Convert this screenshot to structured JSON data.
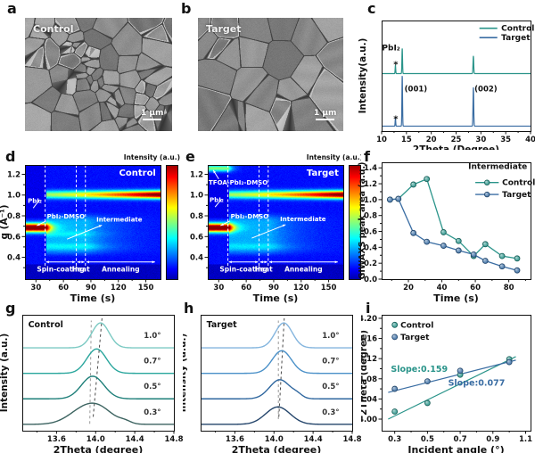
{
  "colors": {
    "control": "#2a948a",
    "target": "#3a6da3",
    "axis": "#111111"
  },
  "panels": {
    "a": {
      "letter": "a",
      "label": "Control",
      "scalebar": "1 μm"
    },
    "b": {
      "letter": "b",
      "label": "Target",
      "scalebar": "1 μm"
    },
    "c": {
      "letter": "c"
    },
    "d": {
      "letter": "d"
    },
    "e": {
      "letter": "e"
    },
    "f": {
      "letter": "f"
    },
    "g": {
      "letter": "g"
    },
    "h": {
      "letter": "h"
    },
    "i": {
      "letter": "i"
    }
  },
  "chart_data": [
    {
      "id": "c",
      "type": "line",
      "xlabel": "2Theta (Degree)",
      "ylabel": "Intensity(a.u.)",
      "xlim": [
        10,
        40
      ],
      "xticks": [
        10,
        15,
        20,
        25,
        30,
        35,
        40
      ],
      "xminors": [
        12.5,
        17.5,
        22.5,
        27.5,
        32.5,
        37.5
      ],
      "legend": [
        {
          "label": "Control",
          "color": "#2a948a"
        },
        {
          "label": "Target",
          "color": "#3a6da3"
        }
      ],
      "series": [
        {
          "name": "Control",
          "color": "#2a948a",
          "baseline": 0.52,
          "peaks": [
            {
              "c": 12.78,
              "h": 0.075,
              "w": 0.055
            },
            {
              "c": 14.15,
              "h": 0.23,
              "w": 0.06
            },
            {
              "c": 28.48,
              "h": 0.16,
              "w": 0.07
            }
          ]
        },
        {
          "name": "Target",
          "color": "#3a6da3",
          "baseline": 0.045,
          "peaks": [
            {
              "c": 12.78,
              "h": 0.07,
              "w": 0.055
            },
            {
              "c": 14.15,
              "h": 0.46,
              "w": 0.06
            },
            {
              "c": 28.48,
              "h": 0.35,
              "w": 0.07
            }
          ]
        }
      ],
      "annotations": [
        {
          "text": "PbI₂",
          "x": 11.9,
          "y": 0.73,
          "size": 9,
          "bold": true,
          "color": "#111"
        },
        {
          "text": "*",
          "x": 12.85,
          "y": 0.575,
          "size": 10,
          "bold": true,
          "color": "#111"
        },
        {
          "text": "*",
          "x": 12.85,
          "y": 0.085,
          "size": 10,
          "bold": true,
          "color": "#111"
        },
        {
          "text": "(001)",
          "x": 16.9,
          "y": 0.36,
          "size": 8.5,
          "bold": true,
          "color": "#111"
        },
        {
          "text": "(002)",
          "x": 31.0,
          "y": 0.36,
          "size": 8.5,
          "bold": true,
          "color": "#111"
        }
      ],
      "legend_rows": [
        0.93,
        0.845
      ],
      "legend_line": [
        29.7,
        33.3
      ],
      "legend_text_x": 34.1
    },
    {
      "id": "d",
      "type": "heatmap",
      "panel_label": "Control",
      "xlabel": "Time (s)",
      "ylabel": "q (Å⁻¹)",
      "colorbar_label": "Intensity (a.u.)",
      "xlim": [
        18,
        166
      ],
      "xticks": [
        30,
        60,
        90,
        120,
        150
      ],
      "xminor_step": 15,
      "ylim": [
        0.19,
        1.29
      ],
      "yticks": [
        0.4,
        0.6,
        0.8,
        1.0,
        1.2
      ],
      "yminor_step": 0.1,
      "vlines": [
        40,
        74,
        84
      ],
      "stages": [
        {
          "text": "Spin-coating",
          "t0": 41,
          "t1": 73
        },
        {
          "text": "Heat",
          "t0": 75,
          "t1": 83
        },
        {
          "text": "Annealing",
          "t0": 85,
          "t1": 160
        }
      ],
      "bands": [
        {
          "kind": "line",
          "q": 0.685,
          "sigma": 0.03,
          "t0": 18,
          "t1": 40,
          "amp": 0.97,
          "decay": 6
        },
        {
          "kind": "grow",
          "q": 1.005,
          "sigma": 0.027,
          "t0": 41,
          "t1": 166,
          "a0": 0.4,
          "a1": 0.92
        },
        {
          "kind": "cloud",
          "q0": 0.45,
          "q1": 0.79,
          "t0": 41,
          "t1": 86,
          "amp": 0.17,
          "tail": 30
        },
        {
          "kind": "line",
          "q": 0.505,
          "sigma": 0.02,
          "t0": 41,
          "t1": 90,
          "amp": 0.07,
          "decay": 20
        },
        {
          "kind": "line",
          "q": 0.625,
          "sigma": 0.02,
          "t0": 41,
          "t1": 80,
          "amp": 0.06,
          "decay": 20
        }
      ],
      "annotations": [
        {
          "text": "PbI₂",
          "t": 21,
          "q": 0.925,
          "arrow": [
            27,
            0.875,
            34,
            0.955
          ]
        },
        {
          "text": "PbI₂-DMSO",
          "t": 42,
          "q": 0.775,
          "arrow": [
            41,
            0.75,
            31,
            0.705
          ]
        },
        {
          "text": "Intermediate",
          "t": 96,
          "q": 0.745,
          "arrow": [
            64,
            0.575,
            102,
            0.71
          ]
        }
      ]
    },
    {
      "id": "e",
      "type": "heatmap",
      "panel_label": "Target",
      "xlabel": "Time (s)",
      "ylabel": "",
      "colorbar_label": "Intensity (a.u.)",
      "xlim": [
        18,
        166
      ],
      "xticks": [
        30,
        60,
        90,
        120,
        150
      ],
      "xminor_step": 15,
      "ylim": [
        0.19,
        1.29
      ],
      "yticks": [
        0.4,
        0.6,
        0.8,
        1.0,
        1.2
      ],
      "yminor_step": 0.1,
      "vlines": [
        40,
        74,
        84
      ],
      "stages": [
        {
          "text": "Spin-coating",
          "t0": 41,
          "t1": 73
        },
        {
          "text": "Heat",
          "t0": 75,
          "t1": 83
        },
        {
          "text": "Annealing",
          "t0": 85,
          "t1": 160
        }
      ],
      "bands": [
        {
          "kind": "line",
          "q": 0.685,
          "sigma": 0.03,
          "t0": 18,
          "t1": 40,
          "amp": 0.97,
          "decay": 6
        },
        {
          "kind": "line",
          "q": 1.26,
          "sigma": 0.024,
          "t0": 18,
          "t1": 40,
          "amp": 0.4,
          "decay": 5
        },
        {
          "kind": "grow",
          "q": 1.005,
          "sigma": 0.027,
          "t0": 41,
          "t1": 166,
          "a0": 0.4,
          "a1": 0.92
        },
        {
          "kind": "cloud",
          "q0": 0.45,
          "q1": 0.79,
          "t0": 41,
          "t1": 86,
          "amp": 0.16,
          "tail": 30
        },
        {
          "kind": "line",
          "q": 0.505,
          "sigma": 0.02,
          "t0": 41,
          "t1": 90,
          "amp": 0.06,
          "decay": 20
        }
      ],
      "annotations": [
        {
          "text": "TFOA-PbI₂-DMSO",
          "t": 19,
          "q": 1.1,
          "arrow": [
            30,
            1.155,
            24,
            1.24
          ]
        },
        {
          "text": "PbI₂",
          "t": 20,
          "q": 0.935,
          "arrow": [
            26,
            0.885,
            33,
            0.96
          ]
        },
        {
          "text": "PbI₂-DMSO",
          "t": 43,
          "q": 0.775,
          "arrow": [
            42,
            0.75,
            32,
            0.705
          ]
        },
        {
          "text": "Intermediate",
          "t": 97,
          "q": 0.75,
          "arrow": [
            66,
            0.585,
            103,
            0.715
          ]
        }
      ]
    },
    {
      "id": "f",
      "type": "line",
      "xlabel": "Time (s)",
      "ylabel": "GIWAXS peak area (a.u.)",
      "xlim": [
        4,
        93
      ],
      "xticks": [
        20,
        40,
        60,
        80
      ],
      "xminor_step": 10,
      "ylim": [
        0,
        1.47
      ],
      "yticks": [
        0.0,
        0.2,
        0.4,
        0.6,
        0.8,
        1.0,
        1.2,
        1.4
      ],
      "yminor_step": 0.1,
      "legend_title": "Intermediate",
      "x": [
        9,
        14,
        23,
        31,
        41,
        50,
        59,
        66,
        76,
        85
      ],
      "series": [
        {
          "name": "Control",
          "color": "#2a948a",
          "values": [
            1.0,
            1.01,
            1.19,
            1.26,
            0.59,
            0.48,
            0.29,
            0.44,
            0.29,
            0.26
          ]
        },
        {
          "name": "Target",
          "color": "#3a6da3",
          "values": [
            1.0,
            1.01,
            0.58,
            0.47,
            0.42,
            0.36,
            0.31,
            0.23,
            0.16,
            0.11
          ]
        }
      ],
      "legend": {
        "title_xy": [
          91,
          1.385
        ],
        "rows": [
          {
            "label": "Control",
            "y": 1.215
          },
          {
            "label": "Target",
            "y": 1.065
          }
        ],
        "line": [
          60,
          74
        ],
        "text_x": 76
      }
    },
    {
      "id": "g",
      "type": "line",
      "panel_label": "Control",
      "xlabel": "2Theta (degree)",
      "ylabel": "Intensity (a.u.)",
      "xlim": [
        13.25,
        14.8
      ],
      "xticks": [
        13.6,
        14.0,
        14.4,
        14.8
      ],
      "xminors": [
        13.4,
        13.8,
        14.2,
        14.6
      ],
      "label_x": 14.58,
      "curves": [
        {
          "label": "0.3°",
          "color": "#3c6360",
          "offset": 0.055,
          "components": [
            [
              13.87,
              0.115,
              0.155
            ],
            [
              14.05,
              0.105,
              0.14
            ],
            [
              14.3,
              0.02,
              0.06
            ]
          ]
        },
        {
          "label": "0.5°",
          "color": "#1e7f79",
          "offset": 0.275,
          "components": [
            [
              13.97,
              0.195,
              0.115
            ]
          ]
        },
        {
          "label": "0.7°",
          "color": "#2aa69d",
          "offset": 0.495,
          "components": [
            [
              14.01,
              0.21,
              0.1
            ]
          ]
        },
        {
          "label": "1.0°",
          "color": "#7ccac3",
          "offset": 0.715,
          "components": [
            [
              14.05,
              0.215,
              0.088
            ]
          ]
        }
      ],
      "guides": [
        [
          13.94,
          0.06,
          13.955,
          0.95,
          "#9a9a9a"
        ],
        [
          13.975,
          0.12,
          14.065,
          0.97,
          "#4a4a4a"
        ]
      ]
    },
    {
      "id": "h",
      "type": "line",
      "panel_label": "Target",
      "xlabel": "2Theta (degree)",
      "ylabel": "Intensity (a.u.)",
      "xlim": [
        13.25,
        14.8
      ],
      "xticks": [
        13.6,
        14.0,
        14.4,
        14.8
      ],
      "xminors": [
        13.4,
        13.8,
        14.2,
        14.6
      ],
      "label_x": 14.58,
      "curves": [
        {
          "label": "0.3°",
          "color": "#24456b",
          "offset": 0.055,
          "components": [
            [
              14.04,
              0.15,
              0.125
            ]
          ]
        },
        {
          "label": "0.5°",
          "color": "#2f679f",
          "offset": 0.275,
          "components": [
            [
              14.06,
              0.165,
              0.105
            ],
            [
              14.24,
              0.025,
              0.05
            ]
          ]
        },
        {
          "label": "0.7°",
          "color": "#4a90c8",
          "offset": 0.495,
          "components": [
            [
              14.08,
              0.195,
              0.098
            ]
          ]
        },
        {
          "label": "1.0°",
          "color": "#84b5de",
          "offset": 0.715,
          "components": [
            [
              14.1,
              0.215,
              0.088
            ]
          ]
        }
      ],
      "guides": [
        [
          14.045,
          0.1,
          14.045,
          0.95,
          "#9a9a9a"
        ],
        [
          14.05,
          0.12,
          14.105,
          0.97,
          "#4a4a4a"
        ]
      ]
    },
    {
      "id": "i",
      "type": "scatter",
      "xlabel": "Incident angle (°)",
      "ylabel": "2Theta (degree)",
      "xlim": [
        0.22,
        1.13
      ],
      "xticks": [
        0.3,
        0.5,
        0.7,
        0.9,
        1.1
      ],
      "xminor_step": 0.1,
      "ylim": [
        13.977,
        14.207
      ],
      "yticks": [
        14.0,
        14.04,
        14.08,
        14.12,
        14.16,
        14.2
      ],
      "yminor_step": 0.02,
      "series": [
        {
          "name": "Control",
          "color": "#2a948a",
          "points": [
            [
              0.3,
              14.015
            ],
            [
              0.5,
              14.032
            ],
            [
              0.7,
              14.088
            ],
            [
              1.0,
              14.119
            ]
          ],
          "fit": [
            [
              0.26,
              14.0
            ],
            [
              1.04,
              14.124
            ]
          ],
          "slope_label": "Slope:0.159",
          "slope_xy": [
            0.45,
            14.094
          ]
        },
        {
          "name": "Target",
          "color": "#3a6da3",
          "points": [
            [
              0.3,
              14.06
            ],
            [
              0.5,
              14.075
            ],
            [
              0.7,
              14.096
            ],
            [
              1.0,
              14.113
            ]
          ],
          "fit": [
            [
              0.26,
              14.053
            ],
            [
              1.04,
              14.117
            ]
          ],
          "slope_label": "Slope:0.077",
          "slope_xy": [
            0.8,
            14.066
          ]
        }
      ],
      "legend_rows": [
        {
          "label": "Control",
          "y": 14.187
        },
        {
          "label": "Target",
          "y": 14.163
        }
      ],
      "legend_dot_x": 0.3,
      "legend_text_x": 0.335
    }
  ]
}
